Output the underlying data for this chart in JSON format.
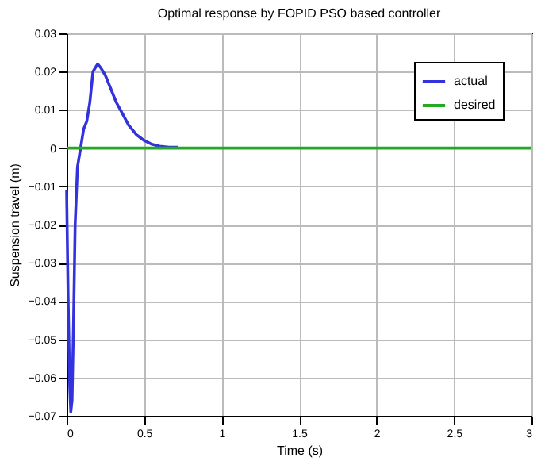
{
  "chart_data": {
    "type": "line",
    "title": "Optimal response by FOPID PSO based controller",
    "xlabel": "Time (s)",
    "ylabel": "Suspension travel (m)",
    "xlim": [
      0,
      3
    ],
    "xticks": [
      0,
      0.5,
      1,
      1.5,
      2,
      2.5,
      3
    ],
    "ylim": [
      -0.07,
      0.03
    ],
    "yticks": [
      -0.07,
      -0.06,
      -0.05,
      -0.04,
      -0.03,
      -0.02,
      -0.01,
      0,
      0.01,
      0.02,
      0.03
    ],
    "grid": true,
    "legend": "top right",
    "marker": "none",
    "line_style": "solid",
    "series": [
      {
        "name": "actual",
        "color": "#3333dd",
        "x": [
          0,
          0.01,
          0.02,
          0.027,
          0.035,
          0.045,
          0.055,
          0.07,
          0.09,
          0.11,
          0.13,
          0.15,
          0.17,
          0.2,
          0.22,
          0.25,
          0.28,
          0.32,
          0.36,
          0.4,
          0.45,
          0.5,
          0.55,
          0.6,
          0.66,
          0.72
        ],
        "values": [
          -0.011,
          -0.04,
          -0.062,
          -0.069,
          -0.066,
          -0.045,
          -0.02,
          -0.005,
          0.0,
          0.005,
          0.007,
          0.012,
          0.02,
          0.022,
          0.021,
          0.019,
          0.016,
          0.012,
          0.009,
          0.006,
          0.0035,
          0.002,
          0.001,
          0.0005,
          0.0002,
          0.0002
        ]
      },
      {
        "name": "desired",
        "color": "#22aa22",
        "x": [
          0,
          3
        ],
        "values": [
          0,
          0
        ]
      }
    ]
  }
}
